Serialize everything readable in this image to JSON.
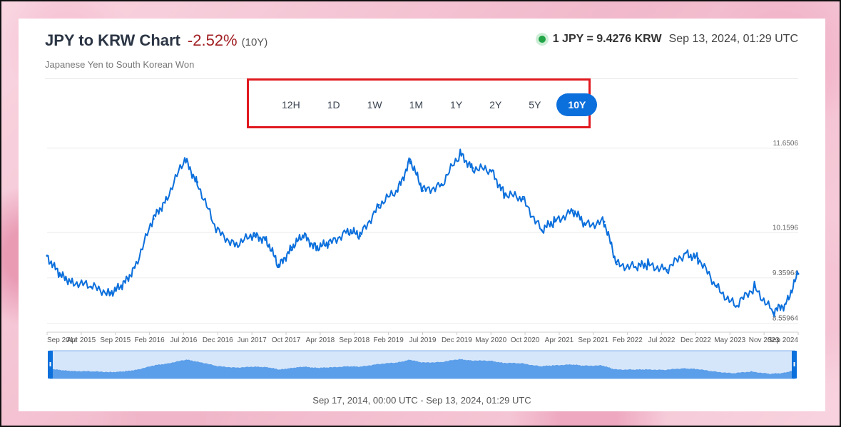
{
  "header": {
    "title": "JPY to KRW Chart",
    "change": "-2.52%",
    "period": "(10Y)",
    "subtitle": "Japanese Yen to South Korean Won",
    "rate": "1 JPY = 9.4276 KRW",
    "timestamp": "Sep 13, 2024, 01:29 UTC"
  },
  "range_buttons": [
    {
      "label": "12H",
      "active": false
    },
    {
      "label": "1D",
      "active": false
    },
    {
      "label": "1W",
      "active": false
    },
    {
      "label": "1M",
      "active": false
    },
    {
      "label": "1Y",
      "active": false
    },
    {
      "label": "2Y",
      "active": false
    },
    {
      "label": "5Y",
      "active": false
    },
    {
      "label": "10Y",
      "active": true
    }
  ],
  "footer": {
    "range_text": "Sep 17, 2014, 00:00 UTC - Sep 13, 2024, 01:29 UTC"
  },
  "colors": {
    "line": "#0b6fdc",
    "navigator_fill": "#5b9ee9",
    "navigator_bg": "#d6e6fa",
    "highlight_box": "#e0191f",
    "change_negative": "#a11e22"
  },
  "chart_data": {
    "type": "line",
    "title": "",
    "xlabel": "",
    "ylabel": "",
    "ylim": [
      8.4,
      11.8
    ],
    "y_ticks": [
      "11.6506",
      "10.1596",
      "9.35964",
      "8.55964"
    ],
    "y_tick_values": [
      11.6506,
      10.1596,
      9.35964,
      8.55964
    ],
    "x_ticks": [
      "Sep 2014",
      "Apr 2015",
      "Sep 2015",
      "Feb 2016",
      "Jul 2016",
      "Dec 2016",
      "Jun 2017",
      "Oct 2017",
      "Apr 2018",
      "Sep 2018",
      "Feb 2019",
      "Jul 2019",
      "Dec 2019",
      "May 2020",
      "Oct 2020",
      "Apr 2021",
      "Sep 2021",
      "Feb 2022",
      "Jul 2022",
      "Dec 2022",
      "May 2023",
      "Nov 2023",
      "Sep 2024"
    ],
    "x": [
      "2014-09",
      "2014-11",
      "2015-01",
      "2015-04",
      "2015-07",
      "2015-09",
      "2015-11",
      "2016-02",
      "2016-04",
      "2016-07",
      "2016-09",
      "2016-12",
      "2017-03",
      "2017-06",
      "2017-08",
      "2017-10",
      "2017-12",
      "2018-02",
      "2018-04",
      "2018-06",
      "2018-09",
      "2018-11",
      "2019-02",
      "2019-05",
      "2019-07",
      "2019-09",
      "2019-12",
      "2020-03",
      "2020-05",
      "2020-08",
      "2020-10",
      "2021-01",
      "2021-04",
      "2021-06",
      "2021-09",
      "2021-11",
      "2022-02",
      "2022-04",
      "2022-07",
      "2022-09",
      "2022-12",
      "2023-03",
      "2023-05",
      "2023-08",
      "2023-11",
      "2024-02",
      "2024-05",
      "2024-07",
      "2024-09"
    ],
    "series": [
      {
        "values": [
          9.75,
          9.4,
          9.3,
          9.2,
          9.1,
          9.2,
          9.55,
          10.4,
          10.75,
          11.45,
          11.05,
          10.2,
          9.95,
          10.1,
          10.05,
          9.55,
          9.9,
          10.1,
          9.9,
          9.95,
          10.2,
          10.1,
          10.65,
          10.9,
          11.45,
          10.9,
          11.0,
          11.55,
          11.3,
          11.25,
          10.85,
          10.75,
          10.2,
          10.35,
          10.55,
          10.3,
          10.35,
          9.6,
          9.55,
          9.6,
          9.5,
          9.8,
          9.7,
          9.2,
          8.85,
          9.2,
          8.75,
          8.9,
          9.43
        ]
      }
    ],
    "grid": true,
    "legend": "none"
  }
}
